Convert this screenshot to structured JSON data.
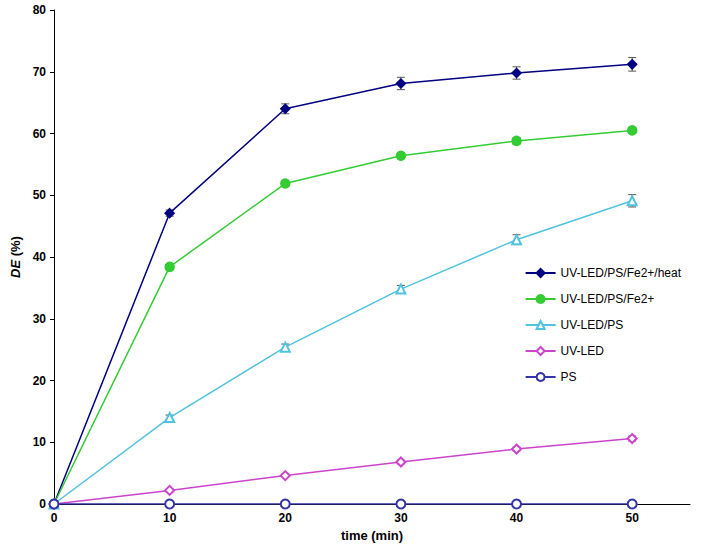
{
  "chart_data": {
    "type": "line",
    "x_label": "time (min)",
    "y_label": "DE (%)",
    "x": [
      0,
      10,
      20,
      30,
      40,
      50
    ],
    "xlim": [
      0,
      55
    ],
    "xticks": [
      0,
      10,
      20,
      30,
      40,
      50
    ],
    "ylim": [
      0,
      80
    ],
    "yticks": [
      0,
      10,
      20,
      30,
      40,
      50,
      60,
      70,
      80
    ],
    "grid": false,
    "legend": "right",
    "series": [
      {
        "name": "UV-LED/PS/Fe2+/heat",
        "color": "#000080",
        "marker": "diamond",
        "values": [
          0,
          47.1,
          64.0,
          68.1,
          69.8,
          71.2
        ],
        "errors": [
          0,
          0.5,
          0.8,
          1.0,
          1.0,
          1.1
        ]
      },
      {
        "name": "UV-LED/PS/Fe2+",
        "color": "#33cc33",
        "marker": "circle",
        "values": [
          0,
          38.4,
          51.9,
          56.4,
          58.8,
          60.5
        ],
        "errors": [
          0,
          0.3,
          0.5,
          0.5,
          0.5,
          0.5
        ]
      },
      {
        "name": "UV-LED/PS",
        "color": "#4fc3e0",
        "marker": "open-triangle",
        "values": [
          0,
          14.0,
          25.4,
          34.8,
          42.8,
          49.1
        ],
        "errors": [
          0,
          0.4,
          0.5,
          0.6,
          0.8,
          1.0
        ]
      },
      {
        "name": "UV-LED",
        "color": "#cc44cc",
        "marker": "open-diamond",
        "values": [
          0,
          2.2,
          4.6,
          6.8,
          8.9,
          10.6
        ],
        "errors": [
          0,
          0.2,
          0.2,
          0.3,
          0.3,
          0.4
        ]
      },
      {
        "name": "PS",
        "color": "#3333aa",
        "marker": "open-circle",
        "values": [
          0,
          0,
          0,
          0,
          0,
          0
        ]
      }
    ]
  }
}
